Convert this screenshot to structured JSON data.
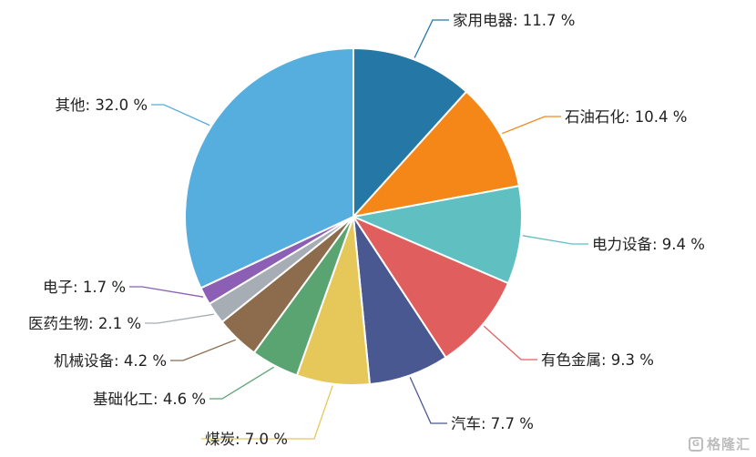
{
  "chart_data": {
    "type": "pie",
    "title": "",
    "slices": [
      {
        "label": "家用电器",
        "value": 11.7,
        "display": "家用电器: 11.7 %",
        "color": "#2577a5"
      },
      {
        "label": "石油石化",
        "value": 10.4,
        "display": "石油石化: 10.4 %",
        "color": "#f58719"
      },
      {
        "label": "电力设备",
        "value": 9.4,
        "display": "电力设备: 9.4 %",
        "color": "#5fbfc1"
      },
      {
        "label": "有色金属",
        "value": 9.3,
        "display": "有色金属: 9.3 %",
        "color": "#e05f5e"
      },
      {
        "label": "汽车",
        "value": 7.7,
        "display": "汽车: 7.7 %",
        "color": "#4a5891"
      },
      {
        "label": "煤炭",
        "value": 7.0,
        "display": "煤炭: 7.0 %",
        "color": "#e6c85a"
      },
      {
        "label": "基础化工",
        "value": 4.6,
        "display": "基础化工: 4.6 %",
        "color": "#5aa472"
      },
      {
        "label": "机械设备",
        "value": 4.2,
        "display": "机械设备: 4.2 %",
        "color": "#8d6c4e"
      },
      {
        "label": "医药生物",
        "value": 2.1,
        "display": "医药生物: 2.1 %",
        "color": "#a6adb4"
      },
      {
        "label": "电子",
        "value": 1.7,
        "display": "电子: 1.7 %",
        "color": "#8c5fb5"
      },
      {
        "label": "其他",
        "value": 32.0,
        "display": "其他: 32.0 %",
        "color": "#55aedd"
      }
    ]
  },
  "watermark": {
    "text": "格隆汇",
    "icon": "g-logo-icon"
  }
}
